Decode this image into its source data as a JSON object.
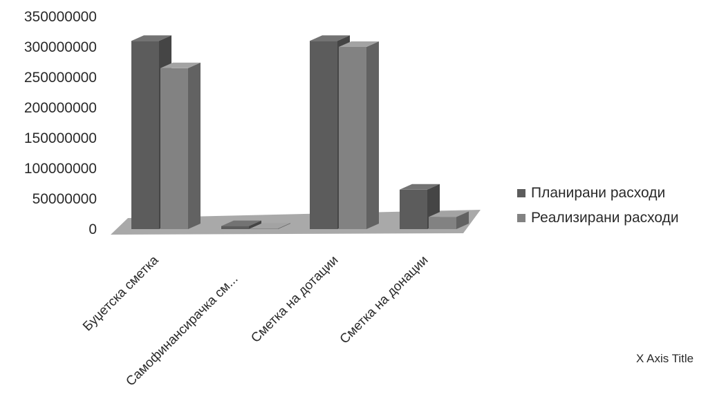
{
  "chart_data": {
    "type": "bar",
    "categories": [
      "Буџетска сметка",
      "Самофинансирачка см...",
      "Сметка на дотации",
      "Сметка на донации"
    ],
    "series": [
      {
        "name": "Планирани расходи",
        "values": [
          310000000,
          5000000,
          310000000,
          65000000
        ]
      },
      {
        "name": "Реализирани расходи",
        "values": [
          265000000,
          1000000,
          300000000,
          20000000
        ]
      }
    ],
    "yticks": [
      "0",
      "50000000",
      "100000000",
      "150000000",
      "200000000",
      "250000000",
      "300000000",
      "350000000"
    ],
    "ylim": [
      0,
      350000000
    ],
    "xlabel": "X Axis Title",
    "legend_position": "right",
    "colors": {
      "series1": "#5c5c5c",
      "series2": "#828282",
      "floor": "#9a9a9a"
    }
  }
}
